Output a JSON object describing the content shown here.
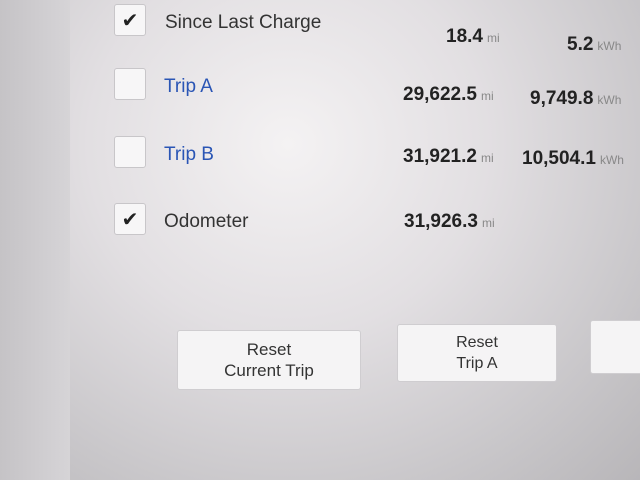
{
  "rows": [
    {
      "label": "Since Last Charge",
      "checked": true,
      "distance": "18.4",
      "distance_unit": "mi",
      "energy": "5.2",
      "energy_unit": "kWh"
    },
    {
      "label": "Trip A",
      "checked": false,
      "distance": "29,622.5",
      "distance_unit": "mi",
      "energy": "9,749.8",
      "energy_unit": "kWh"
    },
    {
      "label": "Trip B",
      "checked": false,
      "distance": "31,921.2",
      "distance_unit": "mi",
      "energy": "10,504.1",
      "energy_unit": "kWh"
    },
    {
      "label": "Odometer",
      "checked": true,
      "distance": "31,926.3",
      "distance_unit": "mi"
    }
  ],
  "check_glyph": "✔",
  "buttons": {
    "reset_current_line1": "Reset",
    "reset_current_line2": "Current Trip",
    "reset_a_line1": "Reset",
    "reset_a_line2": "Trip A"
  },
  "colors": {
    "trip_label": "#2a55b5"
  }
}
